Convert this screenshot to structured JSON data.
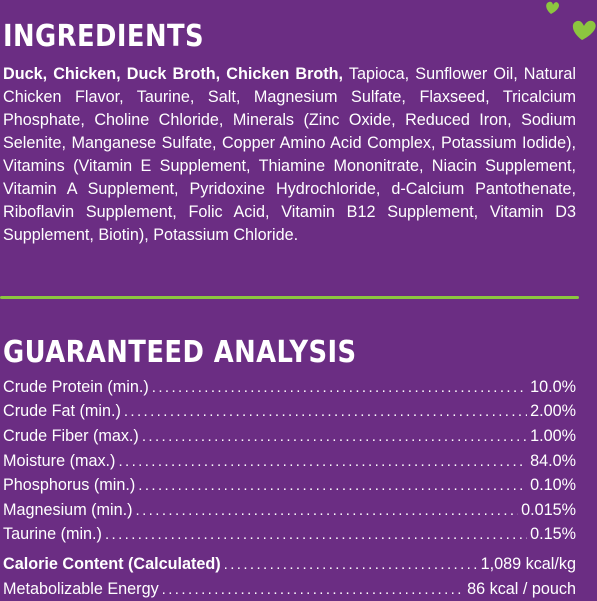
{
  "ingredients": {
    "title": "INGREDIENTS",
    "bold_part": "Duck, Chicken, Duck Broth, Chicken Broth,",
    "rest": " Tapioca, Sunflower Oil, Natural Chicken Flavor, Taurine, Salt, Magnesium Sulfate, Flaxseed, Tricalcium Phosphate, Choline Chloride, Minerals (Zinc Oxide, Reduced Iron, Sodium Selenite, Manganese Sulfate, Copper Amino Acid Complex, Potassium Iodide), Vitamins (Vitamin E Supplement, Thiamine Mononitrate, Niacin Supplement, Vitamin A Supplement, Pyridoxine Hydrochloride, d-Calcium Pantothenate, Riboflavin Supplement, Folic Acid, Vitamin B12 Supplement, Vitamin D3 Supplement, Biotin), Potassium Chloride."
  },
  "analysis": {
    "title": "GUARANTEED ANALYSIS",
    "rows": [
      {
        "label": "Crude Protein (min.)",
        "value": "10.0%"
      },
      {
        "label": "Crude Fat (min.)",
        "value": "2.00%"
      },
      {
        "label": "Crude Fiber (max.)",
        "value": "1.00%"
      },
      {
        "label": "Moisture (max.)",
        "value": "84.0%"
      },
      {
        "label": "Phosphorus (min.)",
        "value": "0.10%"
      },
      {
        "label": "Magnesium (min.)",
        "value": "0.015%"
      },
      {
        "label": "Taurine (min.)",
        "value": "0.15%"
      }
    ],
    "calorie": {
      "label": "Calorie Content (Calculated)",
      "value": "1,089 kcal/kg"
    },
    "energy": {
      "label": "Metabolizable Energy",
      "value": "86 kcal / pouch"
    }
  },
  "colors": {
    "background": "#6b2d83",
    "accent": "#8cc63f",
    "text": "#ffffff"
  },
  "icons": {
    "decoration": "hearts-icon"
  }
}
